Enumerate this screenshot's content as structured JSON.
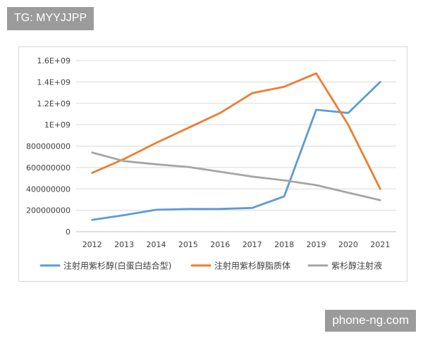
{
  "watermarks": {
    "top_left": "TG: MYYJJPP",
    "bottom_right": "phone-ng.com"
  },
  "chart_data": {
    "type": "line",
    "title": "",
    "xlabel": "",
    "ylabel": "",
    "x": [
      "2012",
      "2013",
      "2014",
      "2015",
      "2016",
      "2017",
      "2018",
      "2019",
      "2020",
      "2021"
    ],
    "ylim": [
      0,
      1600000000
    ],
    "yticks": [
      0,
      200000000,
      400000000,
      600000000,
      800000000,
      1000000000,
      1200000000,
      1400000000,
      1600000000
    ],
    "ytick_labels": [
      "0",
      "200000000",
      "400000000",
      "600000000",
      "800000000",
      "1E+09",
      "1.2E+09",
      "1.4E+09",
      "1.6E+09"
    ],
    "grid": true,
    "legend_position": "bottom",
    "series": [
      {
        "name": "注射用紫杉醇(白蛋白结合型)",
        "color": "#5b9bd5",
        "values": [
          110000000,
          155000000,
          205000000,
          212000000,
          213000000,
          222000000,
          330000000,
          1140000000,
          1110000000,
          1400000000
        ]
      },
      {
        "name": "注射用紫杉醇脂质体",
        "color": "#ed7d31",
        "values": [
          550000000,
          680000000,
          830000000,
          970000000,
          1110000000,
          1295000000,
          1355000000,
          1480000000,
          1000000000,
          400000000
        ]
      },
      {
        "name": "紫杉醇注射液",
        "color": "#a5a5a5",
        "values": [
          740000000,
          660000000,
          630000000,
          605000000,
          560000000,
          515000000,
          480000000,
          435000000,
          365000000,
          295000000
        ]
      }
    ]
  }
}
